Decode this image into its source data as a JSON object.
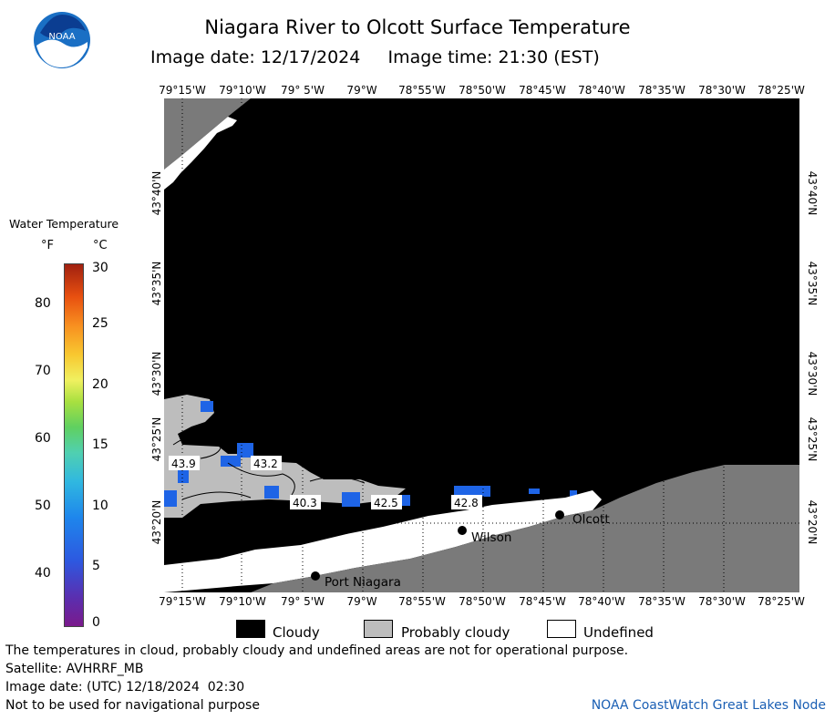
{
  "header": {
    "logo_text": "NOAA",
    "title": "Niagara River to Olcott Surface Temperature",
    "image_date_label": "Image date: 12/17/2024",
    "image_time_label": "Image time: 21:30 (EST)"
  },
  "axes": {
    "longitudes": [
      "79°15'W",
      "79°10'W",
      "79° 5'W",
      "79°W",
      "78°55'W",
      "78°50'W",
      "78°45'W",
      "78°40'W",
      "78°35'W",
      "78°30'W",
      "78°25'W"
    ],
    "latitudes": [
      "43°40'N",
      "43°35'N",
      "43°30'N",
      "43°25'N",
      "43°20'N"
    ]
  },
  "legend": {
    "title": "Water Temperature",
    "unit_f": "°F",
    "unit_c": "°C",
    "ticks_f": [
      "80",
      "70",
      "60",
      "50",
      "40"
    ],
    "ticks_c": [
      "30",
      "25",
      "20",
      "15",
      "10",
      "5",
      "0"
    ]
  },
  "temperature_labels": [
    "43.9",
    "43.2",
    "40.3",
    "42.5",
    "42.8"
  ],
  "towns": [
    "Olcott",
    "Wilson",
    "Port Niagara"
  ],
  "key": {
    "cloudy": "Cloudy",
    "probably_cloudy": "Probably cloudy",
    "undefined": "Undefined",
    "cloudy_color": "#000000",
    "probably_cloudy_color": "#bdbdbd",
    "undefined_color": "#ffffff"
  },
  "footer": {
    "disclaimer": "The temperatures in cloud, probably cloudy and undefined areas are not for operational purpose.",
    "satellite": "Satellite: AVHRRF_MB",
    "utc_date": "Image date: (UTC) 12/18/2024  02:30",
    "navigation": "Not to be used for navigational purpose",
    "node": "NOAA CoastWatch Great Lakes Node"
  },
  "colors": {
    "land": "#7a7a7a",
    "water_blue": "#1e64e6",
    "cloud": "#000000",
    "probably_cloudy": "#bdbdbd"
  }
}
